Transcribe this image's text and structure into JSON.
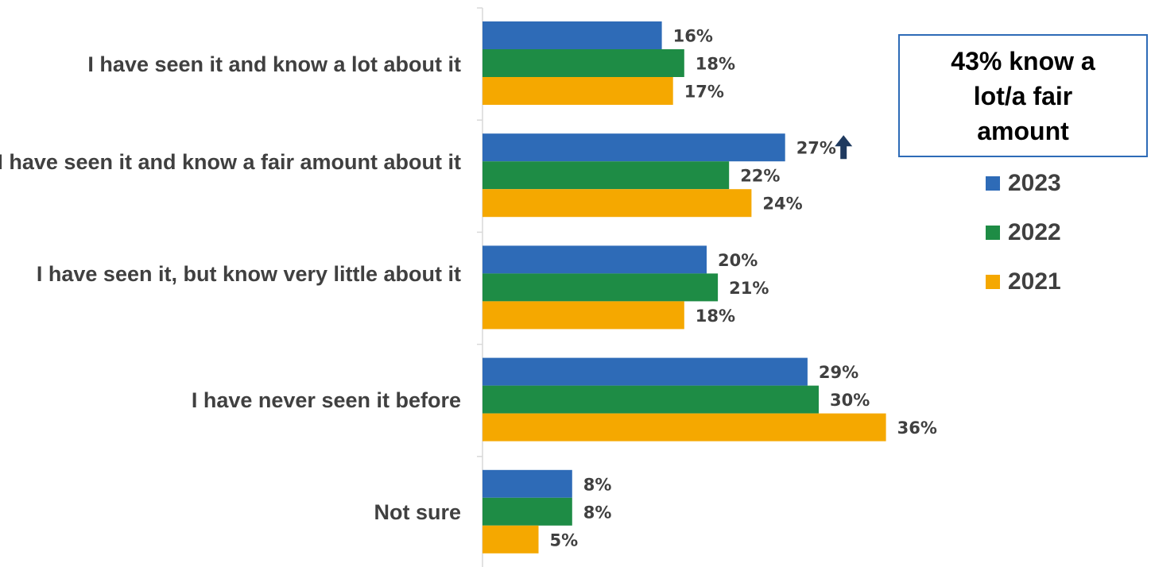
{
  "chart_data": {
    "type": "bar",
    "orientation": "horizontal",
    "categories": [
      "I have seen it and know a lot about it",
      "I have seen it and know a fair amount about it",
      "I have seen it, but know very little about it",
      "I have never seen it before",
      "Not sure"
    ],
    "series": [
      {
        "name": "2023",
        "color": "#2e6bb7",
        "values": [
          16,
          27,
          20,
          29,
          8
        ]
      },
      {
        "name": "2022",
        "color": "#1e8c45",
        "values": [
          18,
          22,
          21,
          30,
          8
        ]
      },
      {
        "name": "2021",
        "color": "#f5a800",
        "values": [
          17,
          24,
          18,
          36,
          5
        ]
      }
    ],
    "value_labels": [
      [
        "16%",
        "27%",
        "20%",
        "29%",
        "8%"
      ],
      [
        "18%",
        "22%",
        "21%",
        "30%",
        "8%"
      ],
      [
        "17%",
        "24%",
        "18%",
        "36%",
        "5%"
      ]
    ],
    "annotations": [
      {
        "type": "up-arrow-icon",
        "series": 0,
        "category": 1,
        "color": "#1f3a5f"
      }
    ],
    "legend_placement": "right",
    "grid": false,
    "xlim": [
      0,
      40
    ]
  },
  "callout": {
    "text": "43% know a lot/a fair amount"
  }
}
